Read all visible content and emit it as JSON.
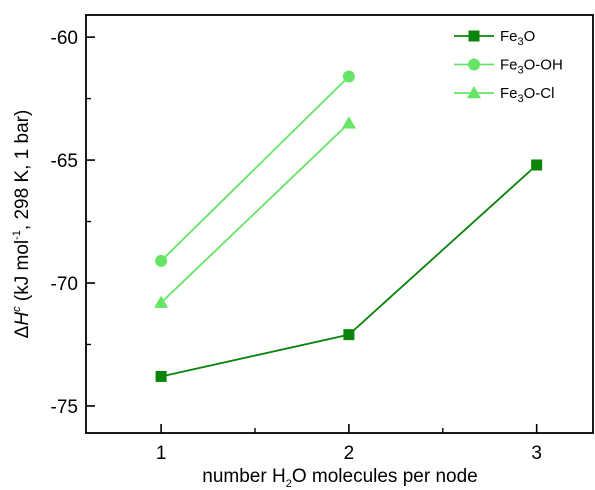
{
  "chart_data": {
    "type": "line",
    "title": "",
    "x": [
      1,
      2,
      3
    ],
    "xlim": [
      0.6,
      3.3
    ],
    "ylim": [
      -76.1,
      -59.1
    ],
    "x_ticks": [
      1,
      2,
      3
    ],
    "y_ticks": [
      -75,
      -70,
      -65,
      -60
    ],
    "x_tick_labels": [
      "1",
      "2",
      "3"
    ],
    "y_tick_labels": [
      "-75",
      "-70",
      "-65",
      "-60"
    ],
    "xlabel": {
      "pre": "number H",
      "sub": "2",
      "post": "O molecules per node"
    },
    "ylabel": {
      "delta": "Δ",
      "H": "H",
      "c": "c",
      "pre": " (kJ mol",
      "sup": "-1",
      "post": ", 298 K, 1 bar)"
    },
    "legend_position": "top-right",
    "grid": false,
    "series": [
      {
        "name": {
          "pre": "Fe",
          "sub": "3",
          "post": "O"
        },
        "marker": "square",
        "color": "#0a840a",
        "points": [
          [
            1,
            -73.8
          ],
          [
            2,
            -72.1
          ],
          [
            3,
            -65.2
          ]
        ]
      },
      {
        "name": {
          "pre": "Fe",
          "sub": "3",
          "post": "O-OH"
        },
        "marker": "circle",
        "color": "#66e466",
        "points": [
          [
            1,
            -69.1
          ],
          [
            2,
            -61.6
          ]
        ]
      },
      {
        "name": {
          "pre": "Fe",
          "sub": "3",
          "post": "O-Cl"
        },
        "marker": "triangle",
        "color": "#66e466",
        "points": [
          [
            1,
            -70.8
          ],
          [
            2,
            -63.5
          ]
        ]
      }
    ]
  }
}
